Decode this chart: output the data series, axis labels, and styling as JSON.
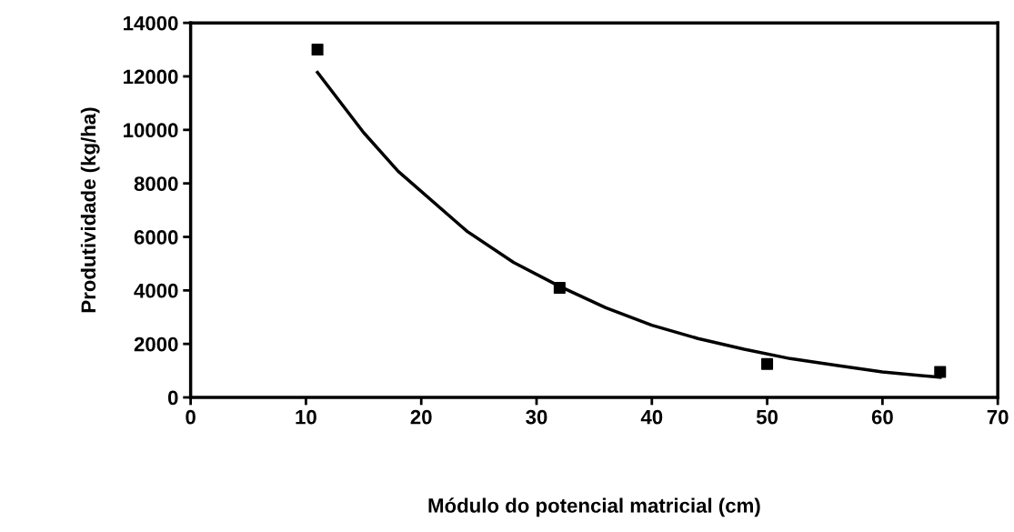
{
  "chart_data": {
    "type": "scatter",
    "xlabel": "Módulo do potencial matricial (cm)",
    "ylabel": "Produtividade (kg/ha)",
    "xlim": [
      0,
      70
    ],
    "xticks": [
      0,
      10,
      20,
      30,
      40,
      50,
      60,
      70
    ],
    "ylim": [
      0,
      14000
    ],
    "yticks": [
      0,
      2000,
      4000,
      6000,
      8000,
      10000,
      12000,
      14000
    ],
    "grid": false,
    "legend": false,
    "x": [
      11,
      32,
      50,
      65
    ],
    "series": [
      {
        "color": "#000000",
        "marker": "square",
        "values": [
          13000,
          4100,
          1250,
          950
        ]
      },
      {
        "type": "line",
        "color": "#000000",
        "line_style": "solid",
        "x": [
          11,
          15,
          18,
          24,
          28,
          32,
          36,
          40,
          44,
          48,
          52,
          56,
          60,
          65
        ],
        "values": [
          12150,
          9900,
          8450,
          6200,
          5050,
          4150,
          3350,
          2700,
          2200,
          1800,
          1450,
          1200,
          950,
          750
        ]
      }
    ]
  }
}
